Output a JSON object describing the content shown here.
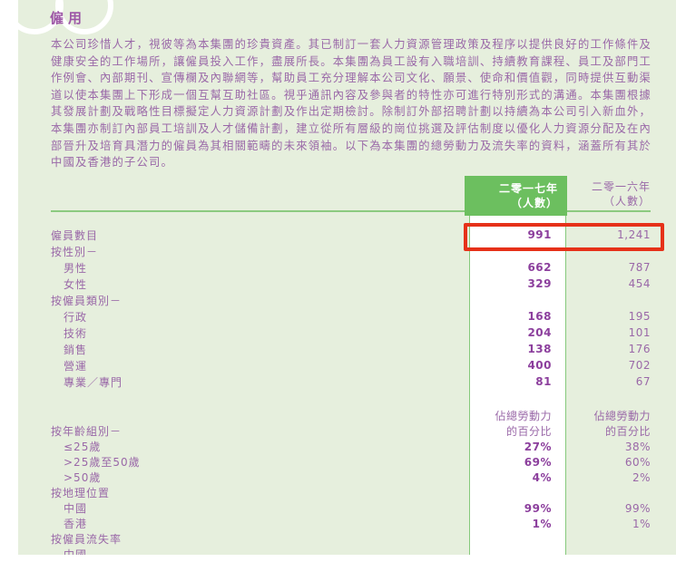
{
  "page": {
    "title": "僱用",
    "intro": "本公司珍惜人才，視彼等為本集團的珍貴資產。其已制訂一套人力資源管理政策及程序以提供良好的工作條件及健康安全的工作場所，讓僱員投入工作，盡展所長。本集團為員工設有入職培訓、持續教育課程、員工及部門工作例會、內部期刊、宣傳欄及內聯網等，幫助員工充分理解本公司文化、願景、使命和價值觀，同時提供互動渠道以使本集團上下形成一個互幫互助社區。視乎通訊內容及參與者的特性亦可進行特別形式的溝通。本集團根據其發展計劃及戰略性目標擬定人力資源計劃及作出定期檢討。除制訂外部招聘計劃以持續為本公司引入新血外，本集團亦制訂內部員工培訓及人才儲備計劃，建立從所有層級的崗位挑選及評估制度以優化人力資源分配及在內部晉升及培育具潛力的僱員為其相關範疇的未來領袖。以下為本集團的總勞動力及流失率的資料，涵蓋所有其於中國及香港的子公司。"
  },
  "colors": {
    "page_background": "#e6efdd",
    "accent_green": "#6cbf5f",
    "line_green": "#8cca80",
    "text_purple": "#9a68a8",
    "bold_purple": "#8c3f9d",
    "highlight_red": "#e63119"
  },
  "table": {
    "col2017": {
      "line1": "二零一七年",
      "line2": "（人數）"
    },
    "col2016": {
      "line1": "二零一六年",
      "line2": "（人數）"
    },
    "rows": [
      {
        "label": "僱員數目",
        "indent": 0,
        "v2017": "991",
        "v2016": "1,241",
        "highlight": true
      },
      {
        "label": "按性別－",
        "indent": 0,
        "v2017": "",
        "v2016": ""
      },
      {
        "label": "男性",
        "indent": 1,
        "v2017": "662",
        "v2016": "787"
      },
      {
        "label": "女性",
        "indent": 1,
        "v2017": "329",
        "v2016": "454"
      },
      {
        "label": "按僱員類別－",
        "indent": 0,
        "v2017": "",
        "v2016": ""
      },
      {
        "label": "行政",
        "indent": 1,
        "v2017": "168",
        "v2016": "195"
      },
      {
        "label": "技術",
        "indent": 1,
        "v2017": "204",
        "v2016": "101"
      },
      {
        "label": "銷售",
        "indent": 1,
        "v2017": "138",
        "v2016": "176"
      },
      {
        "label": "營運",
        "indent": 1,
        "v2017": "400",
        "v2016": "702"
      },
      {
        "label": "專業／專門",
        "indent": 1,
        "v2017": "81",
        "v2016": "67"
      },
      {
        "type": "spacer"
      },
      {
        "label": "",
        "indent": 0,
        "v2017": "佔總勞動力",
        "v2016": "佔總勞動力",
        "muted": true
      },
      {
        "label": "按年齡組別－",
        "indent": 0,
        "v2017": "的百分比",
        "v2016": "的百分比",
        "muted": true
      },
      {
        "label": "≤25歲",
        "indent": 1,
        "v2017": "27%",
        "v2016": "38%"
      },
      {
        "label": ">25歲至50歲",
        "indent": 1,
        "v2017": "69%",
        "v2016": "60%"
      },
      {
        "label": ">50歲",
        "indent": 1,
        "v2017": "4%",
        "v2016": "2%"
      },
      {
        "label": "按地理位置",
        "indent": 0,
        "v2017": "",
        "v2016": ""
      },
      {
        "label": "中國",
        "indent": 1,
        "v2017": "99%",
        "v2016": "99%"
      },
      {
        "label": "香港",
        "indent": 1,
        "v2017": "1%",
        "v2016": "1%"
      },
      {
        "label": "按僱員流失率",
        "indent": 0,
        "v2017": "",
        "v2016": ""
      },
      {
        "label": "中國",
        "indent": 1,
        "v2017": "",
        "v2016": ""
      }
    ]
  }
}
